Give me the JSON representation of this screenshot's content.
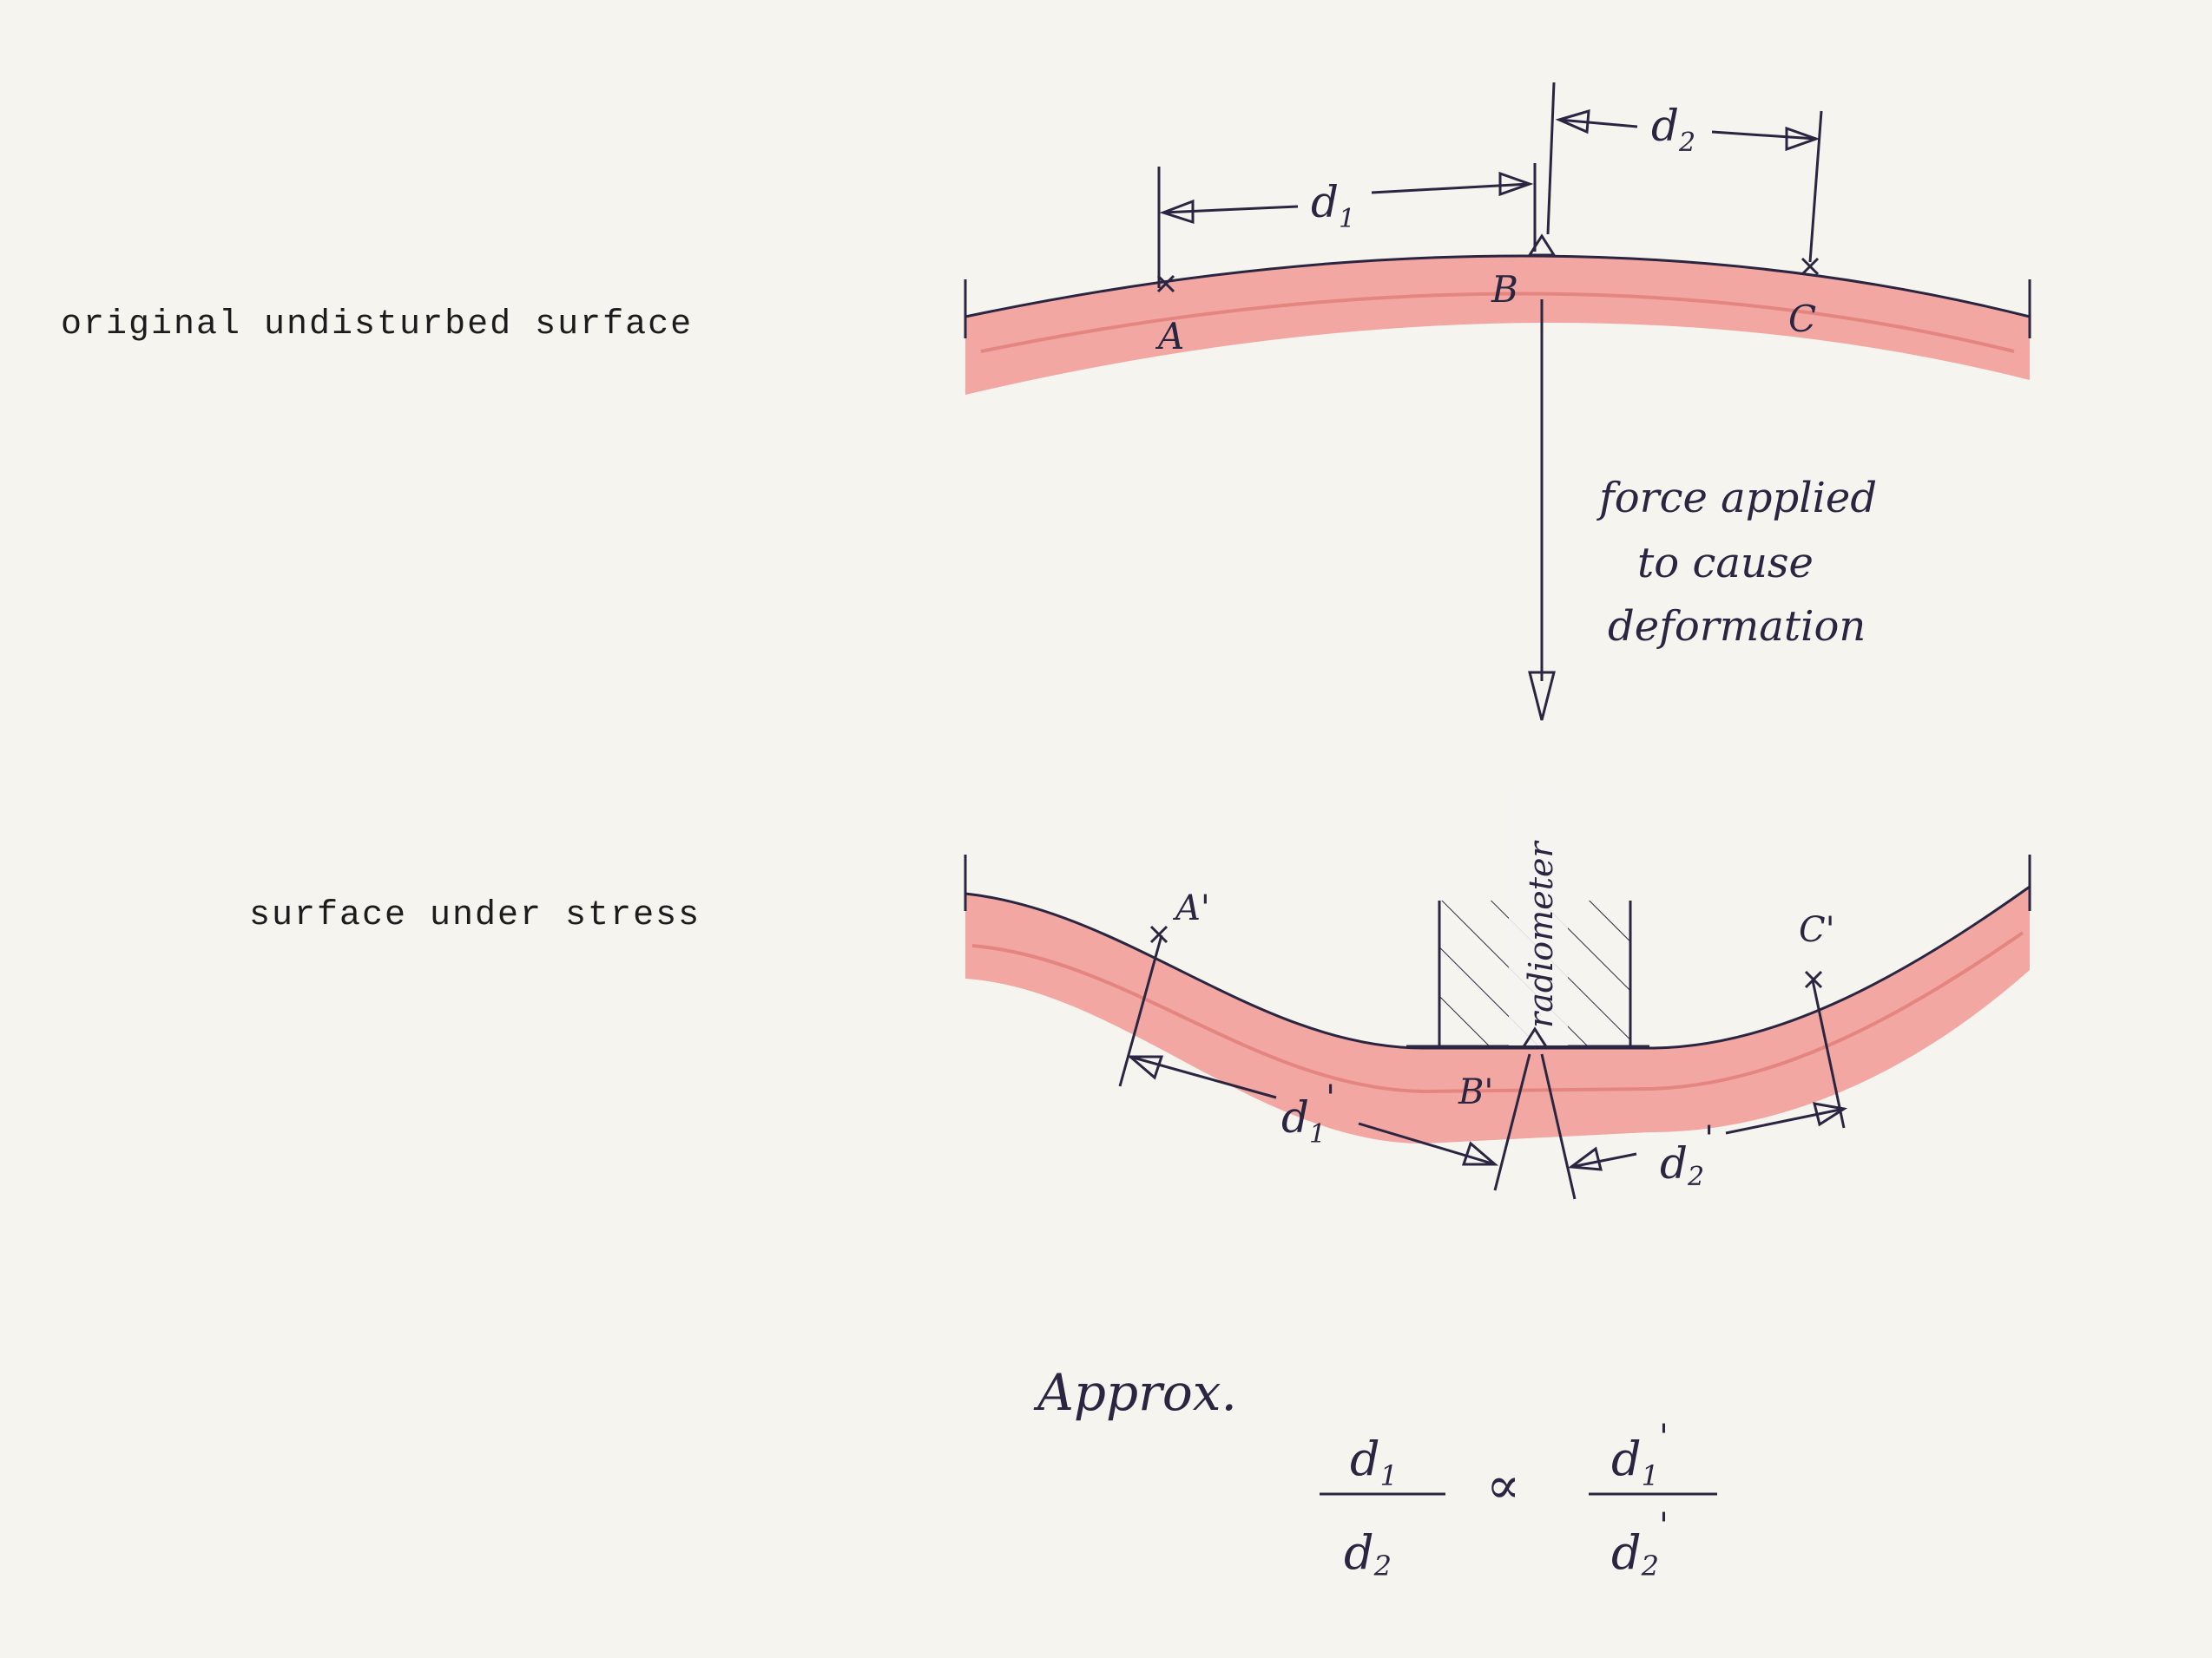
{
  "labels": {
    "original_surface": "original undisturbed surface",
    "stressed_surface": "surface under stress",
    "force_line1": "force applied",
    "force_line2": "to cause",
    "force_line3": "deformation",
    "instrument": "radiometer",
    "approx": "Approx."
  },
  "points": {
    "a": "A",
    "b": "B",
    "c": "C",
    "a_prime": "A'",
    "b_prime": "B'",
    "c_prime": "C'"
  },
  "distances": {
    "d1": "d",
    "d1_sub": "1",
    "d2": "d",
    "d2_sub": "2",
    "d1_prime": "d",
    "d1_prime_sub": "1",
    "d1_prime_mark": "'",
    "d2_prime": "d",
    "d2_prime_sub": "2",
    "d2_prime_mark": "'"
  },
  "formula": {
    "left_num": "d",
    "left_num_sub": "1",
    "left_den": "d",
    "left_den_sub": "2",
    "relation": "∝",
    "right_num": "d",
    "right_num_sub": "1",
    "right_num_mark": "'",
    "right_den": "d",
    "right_den_sub": "2",
    "right_den_mark": "'"
  },
  "colors": {
    "surface_fill": "#f2a7a3",
    "surface_stripe": "#e58580",
    "ink": "#2a2540"
  }
}
